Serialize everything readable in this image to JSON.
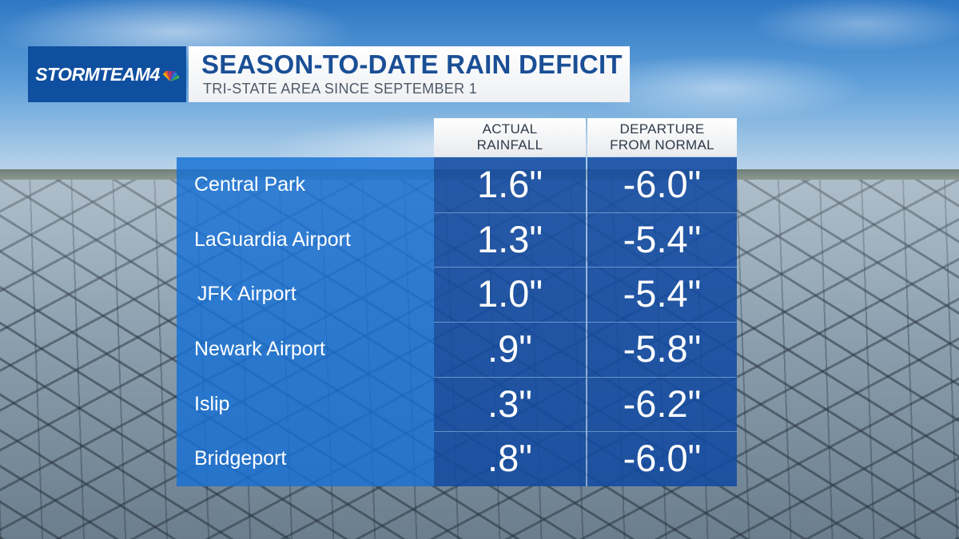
{
  "brand": {
    "logo_text": "STORMTEAM4",
    "logo_colors": [
      "#f5b700",
      "#e8572b",
      "#cf2f6b",
      "#6a3fa0",
      "#1b7fd6",
      "#3fae49"
    ]
  },
  "header": {
    "title": "SEASON-TO-DATE RAIN DEFICIT",
    "subtitle": "TRI-STATE AREA SINCE SEPTEMBER 1"
  },
  "columns": {
    "actual": [
      "ACTUAL",
      "RAINFALL"
    ],
    "departure": [
      "DEPARTURE",
      "FROM NORMAL"
    ]
  },
  "rows": [
    {
      "location": "Central Park",
      "actual": "1.6\"",
      "departure": "-6.0\""
    },
    {
      "location": "LaGuardia Airport",
      "actual": "1.3\"",
      "departure": "-5.4\""
    },
    {
      "location": "JFK Airport",
      "actual": "1.0\"",
      "departure": "-5.4\""
    },
    {
      "location": "Newark Airport",
      "actual": ".9\"",
      "departure": "-5.8\""
    },
    {
      "location": "Islip",
      "actual": ".3\"",
      "departure": "-6.2\""
    },
    {
      "location": "Bridgeport",
      "actual": ".8\"",
      "departure": "-6.0\""
    }
  ],
  "colors": {
    "title": "#1a4f96",
    "names_column": "#1670d6",
    "values_column": "#124aa0"
  }
}
